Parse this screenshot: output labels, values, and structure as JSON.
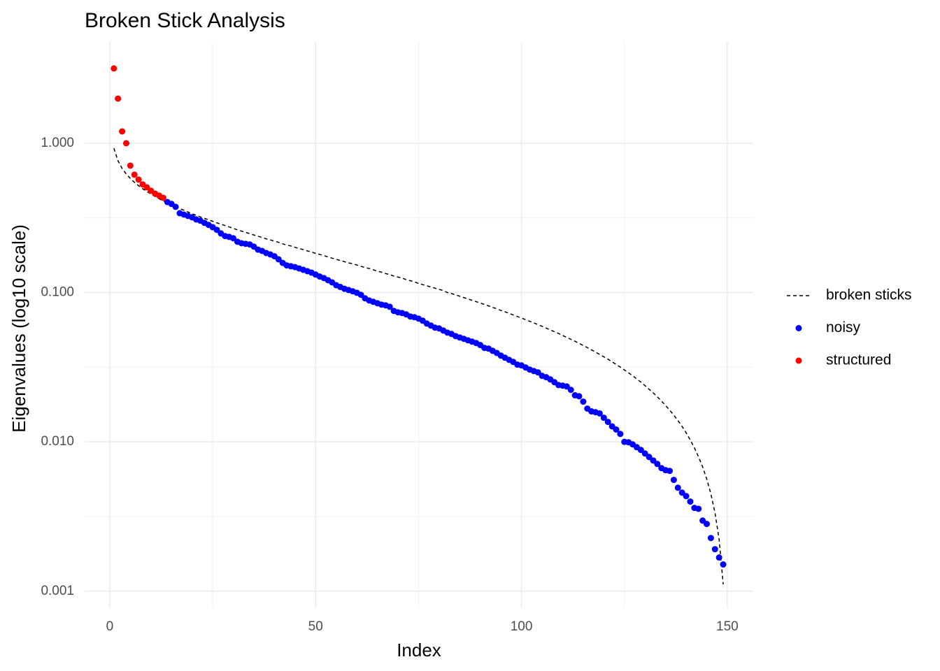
{
  "chart_data": {
    "type": "scatter",
    "title": "Broken Stick Analysis",
    "x_label": "Index",
    "y_label": "Eigenvalues (log10 scale)",
    "xlim": [
      -6.1,
      156.3
    ],
    "ylim": [
      0.00077,
      4.77
    ],
    "y_log": true,
    "grid": true,
    "xticks": [
      0,
      50,
      100,
      150
    ],
    "yticks": [
      {
        "value": 1,
        "label": "1.000"
      },
      {
        "value": 0.1,
        "label": "0.100"
      },
      {
        "value": 0.01,
        "label": "0.010"
      },
      {
        "value": 0.001,
        "label": "0.001"
      }
    ],
    "xminor": [
      25,
      75,
      125
    ],
    "yminor": [
      0.3162,
      0.03162,
      0.003162
    ],
    "legend": "right",
    "series": [
      {
        "name": "broken sticks",
        "color": "#000000",
        "kind": "line",
        "dash": "dashed",
        "x": [
          1,
          2,
          3,
          4,
          5,
          6,
          7,
          8,
          9,
          10,
          11,
          12,
          13,
          14,
          15,
          16,
          17,
          18,
          19,
          20,
          21,
          22,
          23,
          24,
          25,
          26,
          27,
          28,
          29,
          30,
          31,
          32,
          33,
          34,
          35,
          36,
          37,
          38,
          39,
          40,
          41,
          42,
          43,
          44,
          45,
          46,
          47,
          48,
          49,
          50,
          51,
          52,
          53,
          54,
          55,
          56,
          57,
          58,
          59,
          60,
          61,
          62,
          63,
          64,
          65,
          66,
          67,
          68,
          69,
          70,
          71,
          72,
          73,
          74,
          75,
          76,
          77,
          78,
          79,
          80,
          81,
          82,
          83,
          84,
          85,
          86,
          87,
          88,
          89,
          90,
          91,
          92,
          93,
          94,
          95,
          96,
          97,
          98,
          99,
          100,
          101,
          102,
          103,
          104,
          105,
          106,
          107,
          108,
          109,
          110,
          111,
          112,
          113,
          114,
          115,
          116,
          117,
          118,
          119,
          120,
          121,
          122,
          123,
          124,
          125,
          126,
          127,
          128,
          129,
          130,
          131,
          132,
          133,
          134,
          135,
          136,
          137,
          138,
          139,
          140,
          141,
          142,
          143,
          144,
          145,
          146,
          147,
          148,
          149
        ],
        "values": [
          0.926,
          0.763,
          0.678,
          0.622,
          0.581,
          0.547,
          0.52,
          0.496,
          0.475,
          0.457,
          0.44,
          0.425,
          0.411,
          0.399,
          0.387,
          0.376,
          0.365,
          0.356,
          0.346,
          0.338,
          0.329,
          0.321,
          0.314,
          0.307,
          0.3,
          0.293,
          0.287,
          0.281,
          0.275,
          0.269,
          0.263,
          0.258,
          0.253,
          0.248,
          0.243,
          0.238,
          0.234,
          0.229,
          0.225,
          0.221,
          0.217,
          0.212,
          0.208,
          0.205,
          0.201,
          0.197,
          0.194,
          0.19,
          0.187,
          0.183,
          0.18,
          0.177,
          0.173,
          0.17,
          0.167,
          0.164,
          0.161,
          0.158,
          0.156,
          0.153,
          0.15,
          0.147,
          0.145,
          0.142,
          0.139,
          0.137,
          0.134,
          0.132,
          0.129,
          0.127,
          0.125,
          0.122,
          0.12,
          0.118,
          0.115,
          0.113,
          0.111,
          0.109,
          0.107,
          0.105,
          0.103,
          0.1,
          0.0985,
          0.0965,
          0.0945,
          0.0925,
          0.0907,
          0.0887,
          0.0869,
          0.0851,
          0.0832,
          0.0814,
          0.0796,
          0.0778,
          0.0759,
          0.0743,
          0.0725,
          0.0708,
          0.0691,
          0.0675,
          0.0658,
          0.0642,
          0.0626,
          0.061,
          0.0594,
          0.0578,
          0.0562,
          0.0547,
          0.0532,
          0.0516,
          0.0501,
          0.0486,
          0.0472,
          0.0457,
          0.0442,
          0.0428,
          0.0413,
          0.0399,
          0.0385,
          0.0371,
          0.0358,
          0.0344,
          0.033,
          0.0317,
          0.0303,
          0.029,
          0.0277,
          0.0264,
          0.0251,
          0.0238,
          0.0225,
          0.0213,
          0.02,
          0.0188,
          0.0175,
          0.0163,
          0.0151,
          0.0139,
          0.0127,
          0.0115,
          0.0103,
          0.00912,
          0.00794,
          0.0068,
          0.00564,
          0.00449,
          0.00336,
          0.00223,
          0.00111
        ]
      },
      {
        "name": "noisy",
        "color": "#0000ff",
        "kind": "point",
        "x": [
          14,
          15,
          16,
          17,
          18,
          19,
          20,
          21,
          22,
          23,
          24,
          25,
          26,
          27,
          28,
          29,
          30,
          31,
          32,
          33,
          34,
          35,
          36,
          37,
          38,
          39,
          40,
          41,
          42,
          43,
          44,
          45,
          46,
          47,
          48,
          49,
          50,
          51,
          52,
          53,
          54,
          55,
          56,
          57,
          58,
          59,
          60,
          61,
          62,
          63,
          64,
          65,
          66,
          67,
          68,
          69,
          70,
          71,
          72,
          73,
          74,
          75,
          76,
          77,
          78,
          79,
          80,
          81,
          82,
          83,
          84,
          85,
          86,
          87,
          88,
          89,
          90,
          91,
          92,
          93,
          94,
          95,
          96,
          97,
          98,
          99,
          100,
          101,
          102,
          103,
          104,
          105,
          106,
          107,
          108,
          109,
          110,
          111,
          112,
          113,
          114,
          115,
          116,
          117,
          118,
          119,
          120,
          121,
          122,
          123,
          124,
          125,
          126,
          127,
          128,
          129,
          130,
          131,
          132,
          133,
          134,
          135,
          136,
          137,
          138,
          139,
          140,
          141,
          142,
          143,
          144,
          145,
          146,
          147,
          148,
          149
        ],
        "values": [
          0.404,
          0.392,
          0.375,
          0.34,
          0.333,
          0.326,
          0.319,
          0.309,
          0.303,
          0.293,
          0.284,
          0.274,
          0.263,
          0.249,
          0.239,
          0.236,
          0.231,
          0.219,
          0.214,
          0.212,
          0.21,
          0.203,
          0.194,
          0.19,
          0.184,
          0.18,
          0.175,
          0.167,
          0.158,
          0.152,
          0.15,
          0.148,
          0.145,
          0.142,
          0.139,
          0.136,
          0.132,
          0.128,
          0.125,
          0.121,
          0.117,
          0.112,
          0.109,
          0.106,
          0.104,
          0.102,
          0.0997,
          0.0966,
          0.0915,
          0.0885,
          0.0867,
          0.0848,
          0.083,
          0.0821,
          0.0803,
          0.0753,
          0.0737,
          0.0729,
          0.0714,
          0.0691,
          0.0684,
          0.0669,
          0.0648,
          0.062,
          0.0601,
          0.0582,
          0.0575,
          0.0557,
          0.0539,
          0.0528,
          0.0511,
          0.05,
          0.049,
          0.0479,
          0.0469,
          0.0459,
          0.0445,
          0.0426,
          0.0421,
          0.0407,
          0.0394,
          0.0378,
          0.0366,
          0.0354,
          0.0343,
          0.0329,
          0.0325,
          0.0315,
          0.0305,
          0.0298,
          0.0292,
          0.0277,
          0.0271,
          0.0262,
          0.0251,
          0.024,
          0.0238,
          0.0235,
          0.0223,
          0.0205,
          0.0202,
          0.0186,
          0.0167,
          0.016,
          0.0158,
          0.0155,
          0.0145,
          0.0136,
          0.0127,
          0.0121,
          0.0113,
          0.01,
          0.00994,
          0.00962,
          0.00921,
          0.00883,
          0.00836,
          0.00792,
          0.0075,
          0.00711,
          0.00667,
          0.00646,
          0.00639,
          0.00556,
          0.00493,
          0.00457,
          0.00433,
          0.00398,
          0.00361,
          0.00356,
          0.00297,
          0.00282,
          0.00227,
          0.00191,
          0.00168,
          0.00151
        ]
      },
      {
        "name": "structured",
        "color": "#ff0000",
        "kind": "point",
        "x": [
          1,
          2,
          3,
          4,
          5,
          6,
          7,
          8,
          9,
          10,
          11,
          12,
          13
        ],
        "values": [
          3.17,
          1.99,
          1.2,
          1.0,
          0.708,
          0.616,
          0.571,
          0.53,
          0.507,
          0.481,
          0.46,
          0.446,
          0.431
        ]
      }
    ]
  }
}
